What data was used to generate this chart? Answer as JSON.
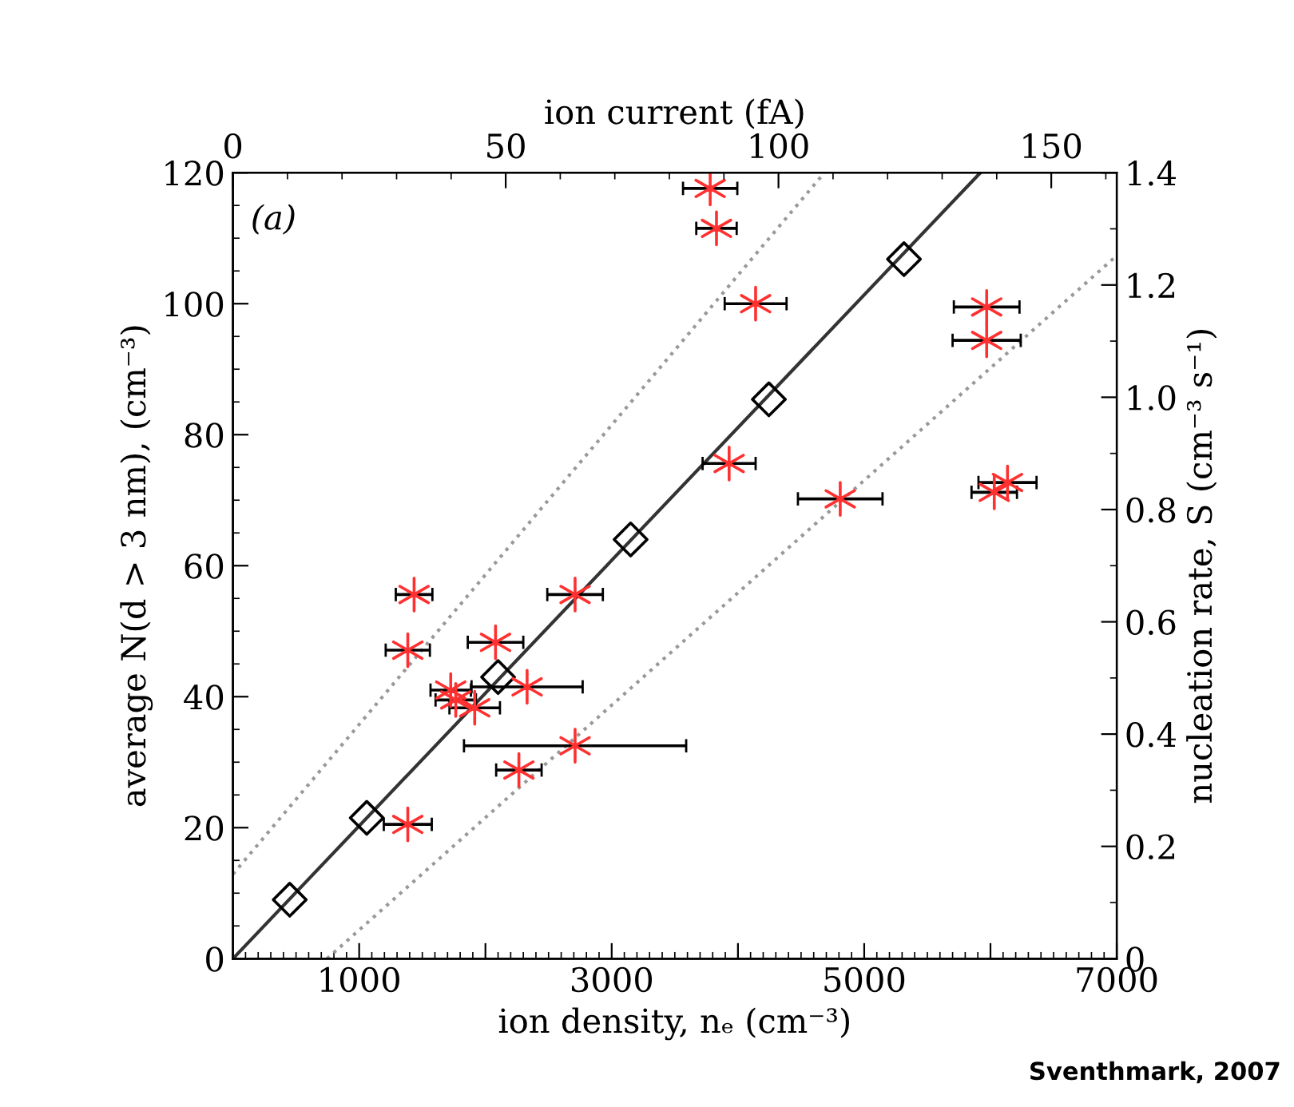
{
  "chart_data": {
    "type": "scatter",
    "xlabel": "ion density, nₑ (cm⁻³)",
    "ylabel": "average N(d > 3 nm), (cm⁻³)",
    "y2label": "nucleation rate, S (cm⁻³ s⁻¹)",
    "x2label": "ion current (fA)",
    "xlim": [
      0,
      7000
    ],
    "xticks": [
      1000,
      {
        "value": 2000,
        "label": null
      },
      3000,
      {
        "value": 4000,
        "label": null
      },
      5000,
      {
        "value": 6000,
        "label": null
      },
      7000
    ],
    "ylim": [
      0,
      120
    ],
    "yticks": [
      0,
      20,
      40,
      60,
      80,
      100,
      120
    ],
    "y2lim": [
      0,
      1.4
    ],
    "y2ticks": [
      0,
      0.2,
      0.4,
      0.6,
      0.8,
      {
        "value": 1.0,
        "label": "1.0"
      },
      1.2,
      1.4
    ],
    "x2lim": [
      0,
      162
    ],
    "x2ticks": [
      0,
      50,
      100,
      150
    ],
    "grid": false,
    "annotations": [
      "(a)",
      "Sventhmark, 2007"
    ],
    "series": [
      {
        "type": "line",
        "color": "#333333",
        "line_style": "solid",
        "marker": "none",
        "x": [
          0,
          5920
        ],
        "values": [
          0,
          120
        ]
      },
      {
        "type": "line",
        "color": "#999999",
        "line_style": "dotted",
        "marker": "none",
        "x": [
          0,
          4685
        ],
        "values": [
          12.9,
          120
        ]
      },
      {
        "type": "line",
        "color": "#999999",
        "line_style": "dotted",
        "marker": "none",
        "x": [
          745,
          6980
        ],
        "values": [
          0,
          107
        ]
      },
      {
        "color": "#000000",
        "marker": "diamond",
        "x": [
          450,
          1060,
          2100,
          3150,
          4245,
          5315
        ],
        "values": [
          9,
          21.5,
          43,
          64,
          85.4,
          106.8
        ]
      },
      {
        "color": "#ff3030",
        "marker": "cross",
        "x": [
          3780,
          3830,
          4140,
          5970,
          5970,
          3930,
          4810,
          6135,
          6030,
          1435,
          2710,
          1385,
          2080,
          2330,
          1725,
          1765,
          1915,
          2710,
          2265,
          1385
        ],
        "values": [
          117.6,
          111.5,
          100,
          99.5,
          94.4,
          75.6,
          70.2,
          72.7,
          71.2,
          55.6,
          55.6,
          47.1,
          48.3,
          41.5,
          41,
          39.5,
          38.3,
          32.5,
          28.8,
          20.5
        ],
        "xerrors": [
          215,
          160,
          245,
          260,
          270,
          210,
          335,
          230,
          180,
          145,
          220,
          175,
          220,
          440,
          160,
          160,
          200,
          880,
          180,
          190
        ]
      }
    ]
  }
}
